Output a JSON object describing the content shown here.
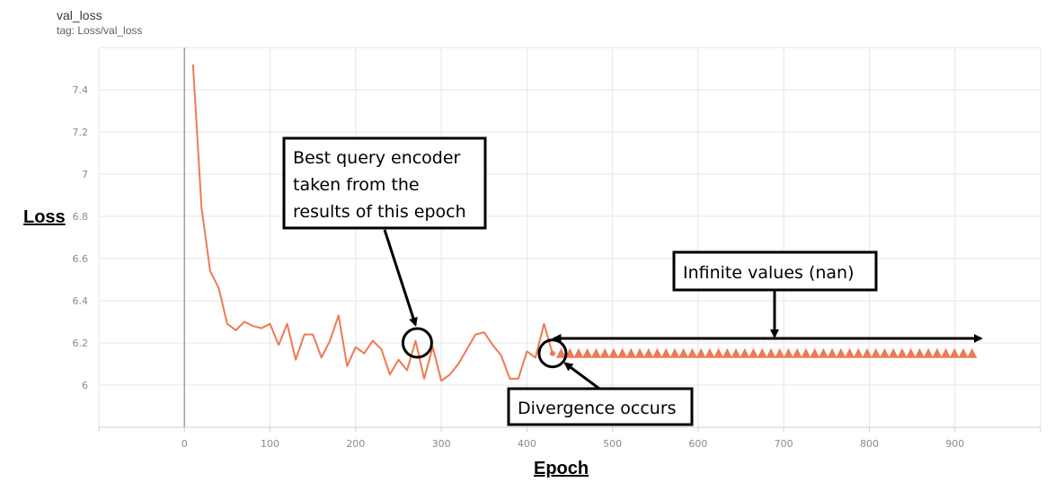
{
  "header": {
    "title": "val_loss",
    "tag": "tag: Loss/val_loss"
  },
  "chart_data": {
    "type": "line",
    "title": "val_loss",
    "subtitle": "tag: Loss/val_loss",
    "xlabel": "Epoch",
    "ylabel": "Loss",
    "xlim": [
      -100,
      1000
    ],
    "ylim": [
      5.8,
      7.6
    ],
    "xticks": [
      0,
      100,
      200,
      300,
      400,
      500,
      600,
      700,
      800,
      900
    ],
    "yticks": [
      6,
      6.2,
      6.4,
      6.6,
      6.8,
      7,
      7.2,
      7.4
    ],
    "ytick_labels": [
      "6",
      "6.2",
      "6.4",
      "6.6",
      "6.8",
      "7",
      "7.2",
      "7.4"
    ],
    "grid": true,
    "line_color": "#ee7a53",
    "series": [
      {
        "values_x": [
          10,
          20,
          30,
          40,
          50,
          60,
          70,
          80,
          90,
          100,
          110,
          120,
          130,
          140,
          150,
          160,
          170,
          180,
          190,
          200,
          210,
          220,
          230,
          240,
          250,
          260,
          270,
          280,
          290,
          300,
          310,
          320,
          330,
          340,
          350,
          360,
          370,
          380,
          390,
          400,
          410,
          420,
          430
        ],
        "values_y": [
          7.52,
          6.84,
          6.54,
          6.46,
          6.29,
          6.26,
          6.3,
          6.28,
          6.27,
          6.29,
          6.19,
          6.29,
          6.12,
          6.24,
          6.24,
          6.13,
          6.21,
          6.33,
          6.09,
          6.18,
          6.15,
          6.21,
          6.17,
          6.05,
          6.12,
          6.07,
          6.21,
          6.03,
          6.18,
          6.02,
          6.05,
          6.1,
          6.17,
          6.24,
          6.25,
          6.19,
          6.14,
          6.03,
          6.03,
          6.16,
          6.13,
          6.29,
          6.15
        ]
      }
    ],
    "nan_markers": {
      "x_start": 440,
      "x_end": 920,
      "count": 48,
      "y": 6.15
    },
    "annotations": [
      {
        "id": "best",
        "text_lines": [
          "Best query encoder",
          "taken from the",
          "results of this epoch"
        ],
        "target": [
          272,
          6.2
        ]
      },
      {
        "id": "divergence",
        "text": "Divergence occurs",
        "target": [
          430,
          6.15
        ]
      },
      {
        "id": "nan",
        "text": "Infinite values (nan)",
        "span": [
          440,
          920
        ]
      }
    ]
  }
}
